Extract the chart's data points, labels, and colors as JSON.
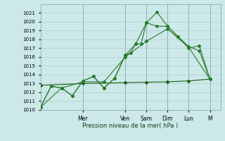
{
  "title": "Pression niveau de la mer( hPa )",
  "bg_color": "#cce8e8",
  "grid_color": "#b0d0d0",
  "line_color_dark": "#1a5c1a",
  "line_color_mid": "#2a7a2a",
  "line_color_light": "#2a7a2a",
  "ylim": [
    1010,
    1022
  ],
  "yticks": [
    1010,
    1011,
    1012,
    1013,
    1014,
    1015,
    1016,
    1017,
    1018,
    1019,
    1020,
    1021
  ],
  "x_day_labels": [
    "Mer",
    "Ven",
    "Sam",
    "Dim",
    "Lun",
    "M"
  ],
  "x_day_positions": [
    16,
    32,
    40,
    48,
    56,
    64
  ],
  "xlim": [
    0,
    68
  ],
  "series1_x": [
    0,
    4,
    8,
    12,
    16,
    20,
    24,
    28,
    32,
    34,
    36,
    38,
    40,
    44,
    48,
    52,
    56,
    60,
    64
  ],
  "series1_y": [
    1010.3,
    1012.7,
    1012.5,
    1011.6,
    1013.3,
    1013.8,
    1012.5,
    1013.6,
    1016.2,
    1016.5,
    1017.5,
    1017.5,
    1019.9,
    1021.1,
    1019.5,
    1018.3,
    1017.0,
    1017.3,
    1013.5
  ],
  "series2_x": [
    0,
    4,
    8,
    12,
    16,
    20,
    24,
    28,
    32,
    36,
    40,
    44,
    48,
    52,
    56,
    60,
    64
  ],
  "series2_y": [
    1010.3,
    1012.7,
    1012.5,
    1011.6,
    1013.3,
    1013.8,
    1012.5,
    1013.6,
    1016.2,
    1017.5,
    1019.9,
    1019.5,
    1019.5,
    1018.3,
    1017.2,
    1016.7,
    1013.5
  ],
  "series3_x": [
    0,
    8,
    16,
    24,
    32,
    40,
    48,
    56,
    64
  ],
  "series3_y": [
    1010.3,
    1012.5,
    1013.2,
    1013.2,
    1016.0,
    1017.8,
    1019.2,
    1017.1,
    1013.5
  ],
  "series_flat_x": [
    0,
    16,
    32,
    40,
    48,
    56,
    64
  ],
  "series_flat_y": [
    1012.8,
    1013.0,
    1013.1,
    1013.15,
    1013.2,
    1013.3,
    1013.5
  ],
  "marker": "D",
  "marker_size": 2.0,
  "line_width": 0.8
}
